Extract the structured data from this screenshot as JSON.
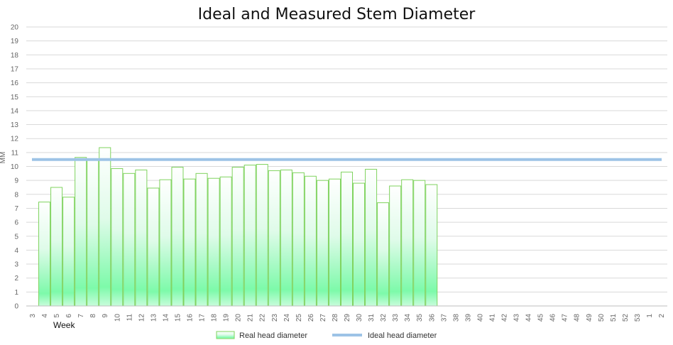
{
  "chart_data": {
    "type": "bar",
    "title": "Ideal and Measured Stem Diameter",
    "xlabel": "Week",
    "ylabel": "MM",
    "ylim": [
      0,
      20
    ],
    "yticks": [
      0,
      1,
      2,
      3,
      4,
      5,
      6,
      7,
      8,
      9,
      10,
      11,
      12,
      13,
      14,
      15,
      16,
      17,
      18,
      19,
      20
    ],
    "categories": [
      "3",
      "4",
      "5",
      "6",
      "7",
      "8",
      "9",
      "10",
      "11",
      "12",
      "13",
      "14",
      "15",
      "16",
      "17",
      "18",
      "19",
      "20",
      "21",
      "22",
      "23",
      "24",
      "25",
      "26",
      "27",
      "28",
      "29",
      "30",
      "31",
      "32",
      "33",
      "34",
      "35",
      "36",
      "37",
      "38",
      "39",
      "40",
      "41",
      "42",
      "43",
      "44",
      "45",
      "46",
      "47",
      "48",
      "49",
      "50",
      "51",
      "52",
      "53",
      "1",
      "2"
    ],
    "series": [
      {
        "name": "Real head diameter",
        "kind": "bar",
        "values": [
          null,
          7.45,
          8.5,
          7.8,
          10.65,
          10.55,
          11.35,
          9.85,
          9.5,
          9.75,
          8.45,
          9.05,
          9.95,
          9.1,
          9.5,
          9.15,
          9.25,
          9.95,
          10.1,
          10.15,
          9.7,
          9.75,
          9.55,
          9.3,
          9.0,
          9.1,
          9.6,
          8.8,
          9.8,
          7.4,
          8.6,
          9.05,
          9.0,
          8.7,
          null,
          null,
          null,
          null,
          null,
          null,
          null,
          null,
          null,
          null,
          null,
          null,
          null,
          null,
          null,
          null,
          null,
          null,
          null
        ]
      },
      {
        "name": "Ideal head diameter",
        "kind": "line",
        "values": [
          10.5,
          10.5,
          10.5,
          10.5,
          10.5,
          10.5,
          10.5,
          10.5,
          10.5,
          10.5,
          10.5,
          10.5,
          10.5,
          10.5,
          10.5,
          10.5,
          10.5,
          10.5,
          10.5,
          10.5,
          10.5,
          10.5,
          10.5,
          10.5,
          10.5,
          10.5,
          10.5,
          10.5,
          10.5,
          10.5,
          10.5,
          10.5,
          10.5,
          10.5,
          10.5,
          10.5,
          10.5,
          10.5,
          10.5,
          10.5,
          10.5,
          10.5,
          10.5,
          10.5,
          10.5,
          10.5,
          10.5,
          10.5,
          10.5,
          10.5,
          10.5,
          10.5,
          10.5
        ]
      }
    ],
    "grid": true,
    "legend": "bottom-center",
    "colors": {
      "bar_border": "#7fd35e",
      "bar_fill_dark": "#7dfaaa",
      "bar_fill_light": "#ffffff",
      "ideal_line": "#9dc3e6",
      "grid": "#d9d9d9",
      "axis": "#bfbfbf"
    }
  }
}
